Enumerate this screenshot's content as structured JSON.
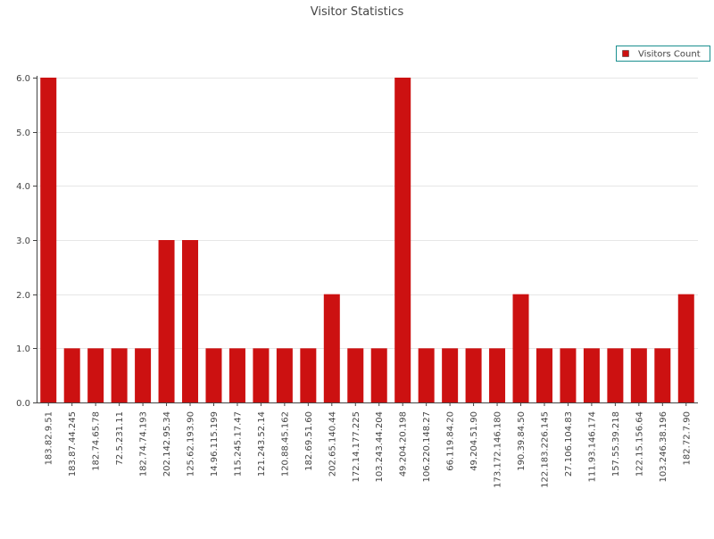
{
  "chart_data": {
    "type": "bar",
    "title": "Visitor Statistics",
    "legend": {
      "position": "top-right",
      "label": "Visitors Count"
    },
    "colors": {
      "bar": "#cc1111",
      "legend_border": "#1a8f8f",
      "grid": "#e6e6e6",
      "axis": "#444444",
      "text": "#444444"
    },
    "ylim": [
      0,
      6
    ],
    "yticks": [
      "0.0",
      "1.0",
      "2.0",
      "3.0",
      "4.0",
      "5.0",
      "6.0"
    ],
    "grid": true,
    "categories": [
      "183.82.9.51",
      "183.87.44.245",
      "182.74.65.78",
      "72.5.231.11",
      "182.74.74.193",
      "202.142.95.34",
      "125.62.193.90",
      "14.96.115.199",
      "115.245.17.47",
      "121.243.52.14",
      "120.88.45.162",
      "182.69.51.60",
      "202.65.140.44",
      "172.14.177.225",
      "103.243.44.204",
      "49.204.20.198",
      "106.220.148.27",
      "66.119.84.20",
      "49.204.51.90",
      "173.172.146.180",
      "190.39.84.50",
      "122.183.226.145",
      "27.106.104.83",
      "111.93.146.174",
      "157.55.39.218",
      "122.15.156.64",
      "103.246.38.196",
      "182.72.7.90"
    ],
    "series": [
      {
        "name": "Visitors Count",
        "values": [
          6,
          1,
          1,
          1,
          1,
          3,
          3,
          1,
          1,
          1,
          1,
          1,
          2,
          1,
          1,
          6,
          1,
          1,
          1,
          1,
          2,
          1,
          1,
          1,
          1,
          1,
          1,
          2
        ]
      }
    ]
  }
}
